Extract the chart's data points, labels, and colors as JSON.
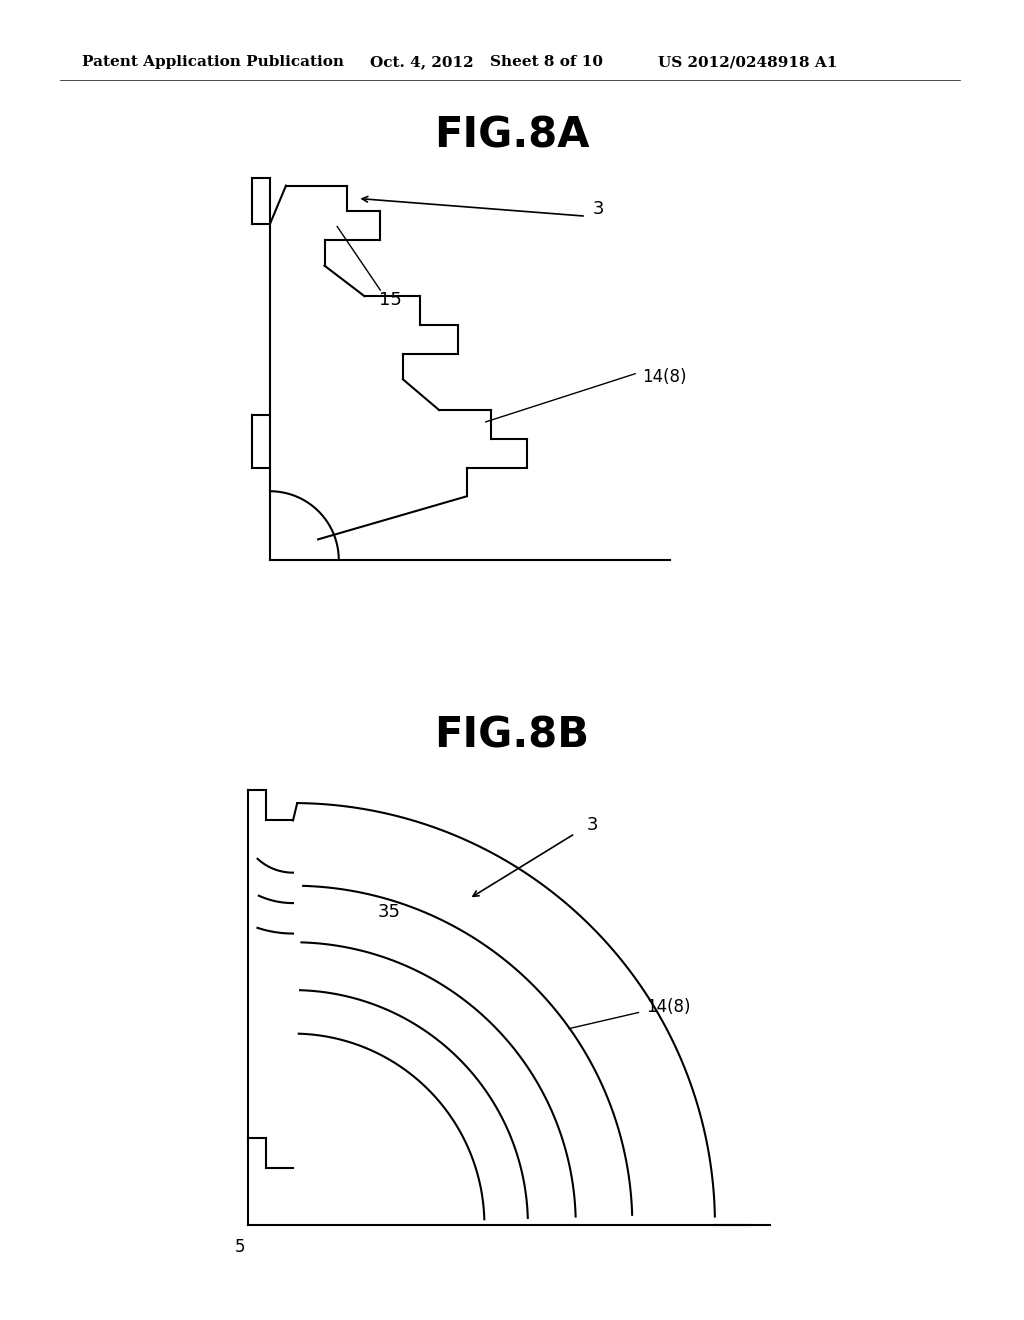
{
  "background_color": "#ffffff",
  "header_text": "Patent Application Publication",
  "header_date": "Oct. 4, 2012",
  "header_sheet": "Sheet 8 of 10",
  "header_patent": "US 2012/0248918 A1",
  "fig8a_title": "FIG.8A",
  "fig8b_title": "FIG.8B",
  "line_color": "#000000",
  "line_width": 1.5,
  "label_fontsize": 12,
  "title_fontsize": 30,
  "header_fontsize": 11
}
